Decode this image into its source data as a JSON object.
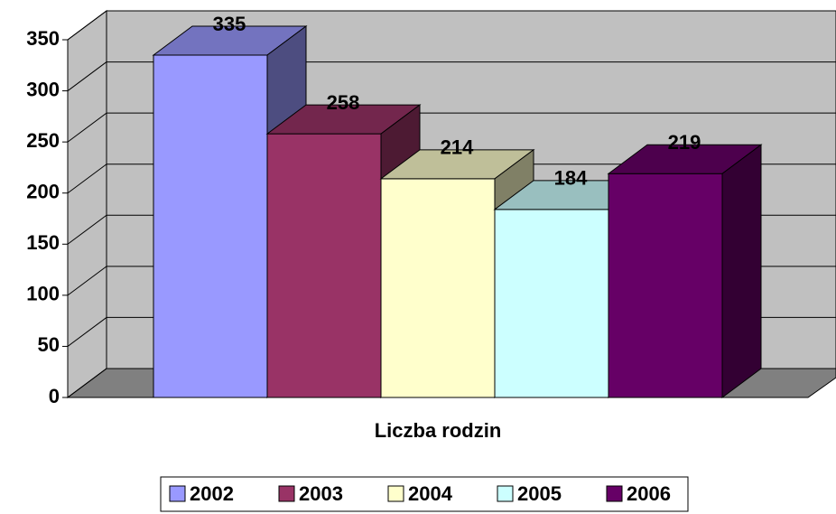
{
  "chart_data": {
    "type": "bar3d",
    "categories": [
      "Liczba rodzin"
    ],
    "series": [
      {
        "name": "2002",
        "color": "#9999ff",
        "values": [
          335
        ]
      },
      {
        "name": "2003",
        "color": "#993366",
        "values": [
          258
        ]
      },
      {
        "name": "2004",
        "color": "#ffffcc",
        "values": [
          214
        ]
      },
      {
        "name": "2005",
        "color": "#ccffff",
        "values": [
          184
        ]
      },
      {
        "name": "2006",
        "color": "#660066",
        "values": [
          219
        ]
      }
    ],
    "ylim": [
      0,
      350
    ],
    "yticks": [
      0,
      50,
      100,
      150,
      200,
      250,
      300,
      350
    ],
    "grid": true,
    "legend": "bottom"
  }
}
